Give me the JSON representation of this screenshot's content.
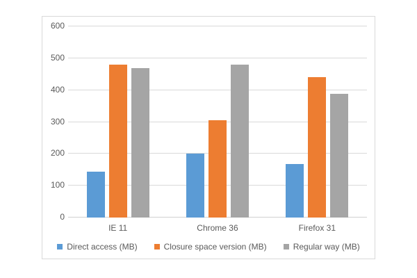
{
  "chart_data": {
    "type": "bar",
    "title": "",
    "categories": [
      "IE 11",
      "Chrome 36",
      "Firefox 31"
    ],
    "series": [
      {
        "name": "Direct access (MB)",
        "color": "#5B9BD5",
        "values": [
          145,
          200,
          168
        ]
      },
      {
        "name": "Closure space version (MB)",
        "color": "#ED7D31",
        "values": [
          480,
          305,
          440
        ]
      },
      {
        "name": "Regular way (MB)",
        "color": "#A5A5A5",
        "values": [
          470,
          480,
          388
        ]
      }
    ],
    "xlabel": "",
    "ylabel": "",
    "ylim": [
      0,
      600
    ],
    "yticks": [
      0,
      100,
      200,
      300,
      400,
      500,
      600
    ],
    "grid": true,
    "legend_position": "bottom"
  },
  "colors": {
    "background": "#FFFFFF",
    "frame_border": "#D9D9D9",
    "gridline": "#D9D9D9",
    "axis_text": "#595959"
  }
}
